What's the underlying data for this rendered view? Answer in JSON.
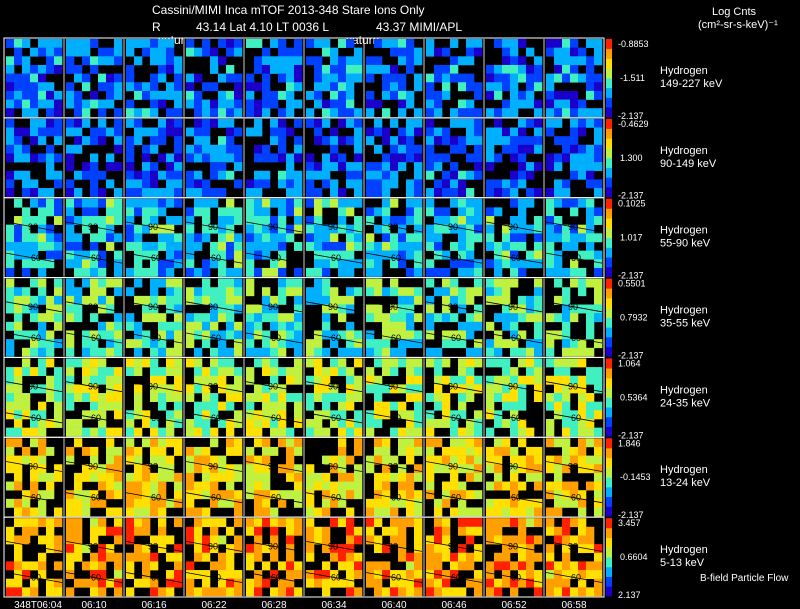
{
  "header": {
    "title": "Cassini/MIMI Inca mTOF  2013-348   Stare   Ions Only",
    "r_label": "R",
    "ephemeris": "43.14 Lat 4.10 LT 0036 L",
    "l_value": "43.37  MIMI/APL",
    "units_line1": "Log Cnts",
    "units_line2": "(cm²-sr-s-keV)⁻¹"
  },
  "annotations": {
    "saturn_1": "satur",
    "saturn_2": "saturn",
    "flow_label": "B-field Particle Flow"
  },
  "time_axis": {
    "ticks": [
      "348T06:04",
      "06:10",
      "06:16",
      "06:22",
      "06:28",
      "06:34",
      "06:40",
      "06:46",
      "06:52",
      "06:58"
    ]
  },
  "colors": {
    "background": "#000000",
    "text": "#ffffff",
    "frame": "#ffffff",
    "colorbar": [
      "#1a00c8",
      "#0040ff",
      "#00b0ff",
      "#40f0c0",
      "#c0f040",
      "#ffe000",
      "#ffa000",
      "#ff2000"
    ]
  },
  "chart_data": {
    "type": "heatmap",
    "title": "Cassini/MIMI Inca mTOF  2013-348   Stare   Ions Only",
    "colorbar_label": "Log Cnts (cm²-sr-s-keV)⁻¹",
    "x": [
      "348T06:04",
      "06:10",
      "06:16",
      "06:22",
      "06:28",
      "06:34",
      "06:40",
      "06:46",
      "06:52",
      "06:58"
    ],
    "contour_labels": [
      "30",
      "60",
      "90"
    ],
    "panels": [
      {
        "species": "Hydrogen",
        "energy": "149-227 keV",
        "cbar_max": "-0.8853",
        "cbar_mid": "-1.511",
        "cbar_min": "-2.137",
        "mean_level": 0.25
      },
      {
        "species": "Hydrogen",
        "energy": "90-149 keV",
        "cbar_max": "-0.4629",
        "cbar_mid": "1.300",
        "cbar_min": "-2.137",
        "mean_level": 0.22
      },
      {
        "species": "Hydrogen",
        "energy": "55-90 keV",
        "cbar_max": "0.1025",
        "cbar_mid": "1.017",
        "cbar_min": "-2.137",
        "mean_level": 0.36
      },
      {
        "species": "Hydrogen",
        "energy": "35-55 keV",
        "cbar_max": "0.5501",
        "cbar_mid": "0.7932",
        "cbar_min": "-2.137",
        "mean_level": 0.45
      },
      {
        "species": "Hydrogen",
        "energy": "24-35 keV",
        "cbar_max": "1.064",
        "cbar_mid": "0.5364",
        "cbar_min": "-2.137",
        "mean_level": 0.55
      },
      {
        "species": "Hydrogen",
        "energy": "13-24 keV",
        "cbar_max": "1.846",
        "cbar_mid": "-0.1453",
        "cbar_min": "-2.137",
        "mean_level": 0.68
      },
      {
        "species": "Hydrogen",
        "energy": "5-13 keV",
        "cbar_max": "3.457",
        "cbar_mid": "0.6604",
        "cbar_min": "2.137",
        "mean_level": 0.78
      }
    ]
  }
}
